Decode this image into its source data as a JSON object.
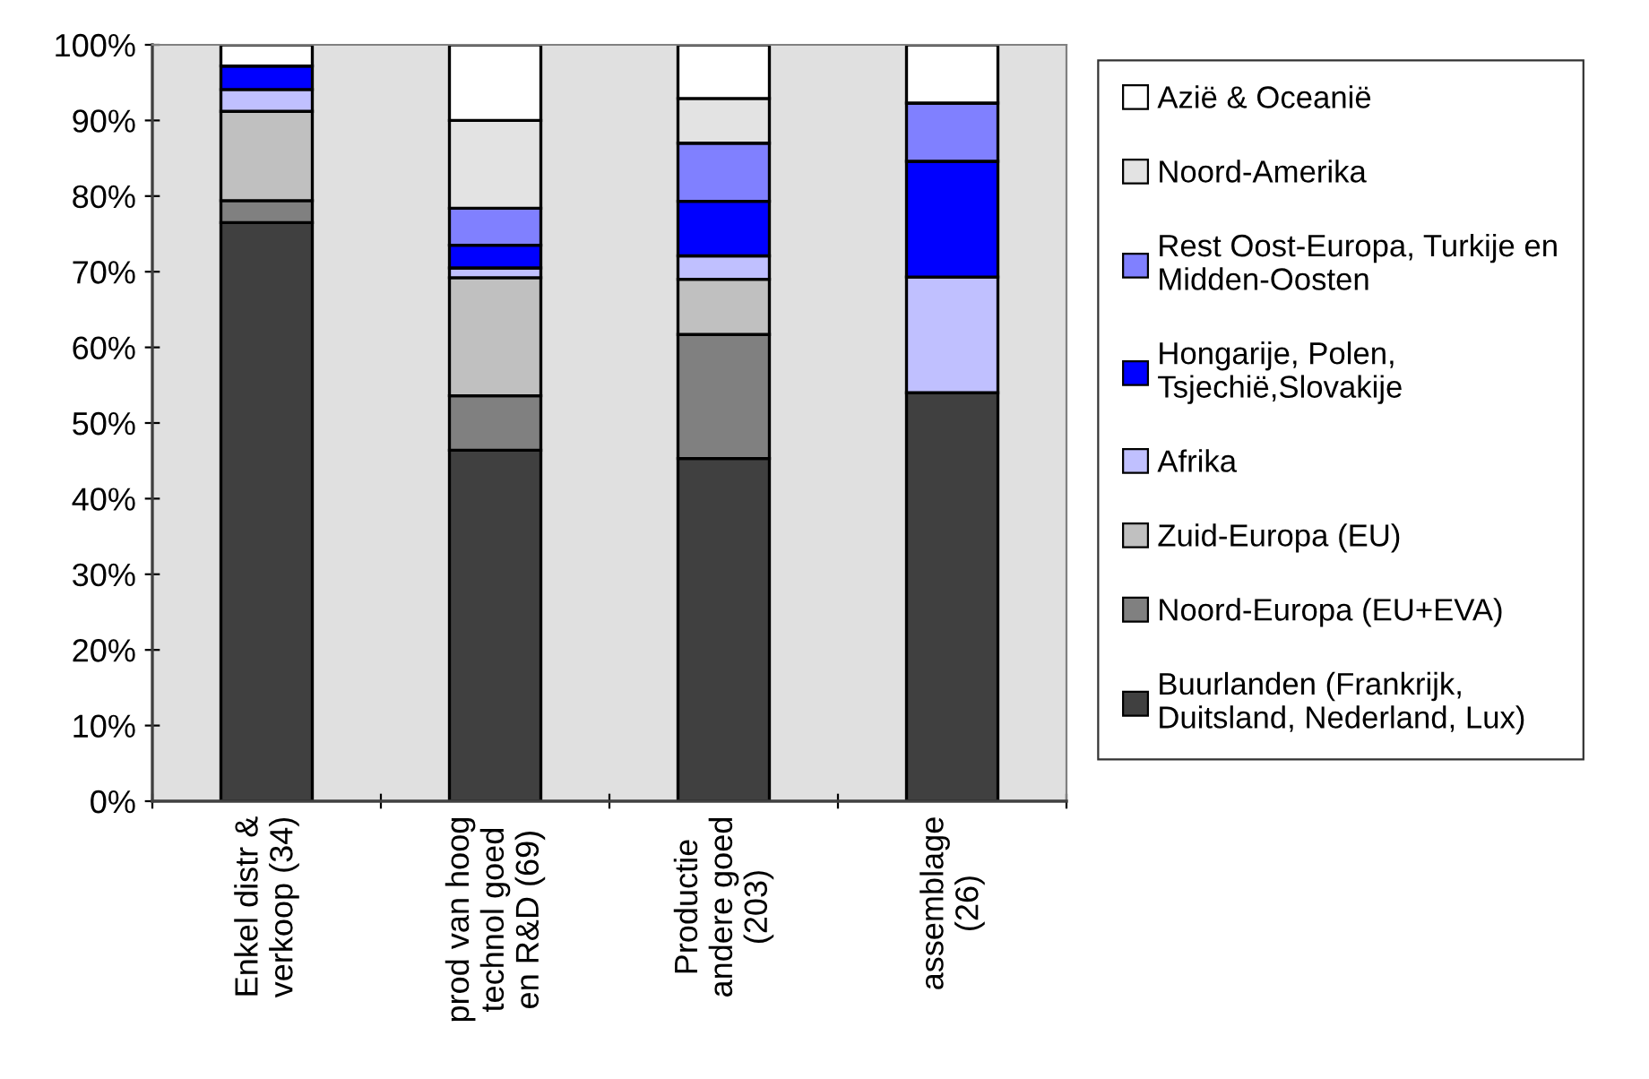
{
  "chart_data": {
    "type": "bar",
    "stacked": true,
    "categories": [
      "Enkel distr &\nverkoop (34)",
      "prod van hoog\ntechnol goed\nen R&D (69)",
      "Productie\nandere goed\n(203)",
      "assemblage\n(26)"
    ],
    "series": [
      {
        "name": "Buurlanden (Frankrijk,\nDuitsland, Nederland, Lux)",
        "color": "#404040",
        "values": [
          76.5,
          46.4,
          45.3,
          54.0
        ]
      },
      {
        "name": "Noord-Europa (EU+EVA)",
        "color": "#808080",
        "values": [
          2.9,
          7.2,
          16.4,
          0
        ]
      },
      {
        "name": "Zuid-Europa (EU)",
        "color": "#c0c0c0",
        "values": [
          11.8,
          15.6,
          7.3,
          0
        ]
      },
      {
        "name": "Afrika",
        "color": "#c0c0ff",
        "values": [
          2.9,
          1.3,
          3.1,
          15.3
        ]
      },
      {
        "name": "Hongarije, Polen,\nTsjechië,Slovakije",
        "color": "#0000ff",
        "values": [
          3.1,
          3.0,
          7.2,
          15.3
        ]
      },
      {
        "name": "Rest Oost-Europa, Turkije en\nMidden-Oosten",
        "color": "#8080ff",
        "values": [
          0,
          4.9,
          7.7,
          7.7
        ]
      },
      {
        "name": "Noord-Amerika",
        "color": "#e3e3e3",
        "values": [
          0,
          11.6,
          5.9,
          0
        ]
      },
      {
        "name": "Azië & Oceanië",
        "color": "#ffffff",
        "values": [
          2.8,
          10.0,
          7.1,
          7.7
        ]
      }
    ],
    "ylim": [
      0,
      100
    ],
    "yticks": [
      {
        "value": 0,
        "label": "0%"
      },
      {
        "value": 10,
        "label": "10%"
      },
      {
        "value": 20,
        "label": "20%"
      },
      {
        "value": 30,
        "label": "30%"
      },
      {
        "value": 40,
        "label": "40%"
      },
      {
        "value": 50,
        "label": "50%"
      },
      {
        "value": 60,
        "label": "60%"
      },
      {
        "value": 70,
        "label": "70%"
      },
      {
        "value": 80,
        "label": "80%"
      },
      {
        "value": 90,
        "label": "90%"
      },
      {
        "value": 100,
        "label": "100%"
      }
    ],
    "legend": "right",
    "grid": false
  }
}
